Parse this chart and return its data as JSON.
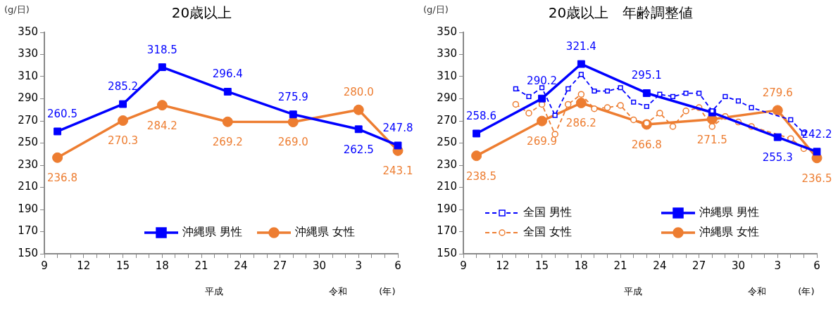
{
  "chart_data": [
    {
      "type": "line",
      "title": "20歳以上",
      "ylabel": "(g/日)",
      "categories": [
        "9",
        null,
        null,
        "12",
        null,
        null,
        "15",
        null,
        null,
        "18",
        null,
        null,
        "21",
        null,
        null,
        "24",
        null,
        null,
        "27",
        null,
        null,
        "30",
        null,
        null,
        "3",
        null,
        null,
        "6"
      ],
      "ylim": [
        150,
        350
      ],
      "yticks": [
        150,
        170,
        190,
        210,
        230,
        250,
        270,
        290,
        310,
        330,
        350
      ],
      "series": [
        {
          "name": "沖縄県 男性",
          "color": "#0000ff",
          "marker": "square",
          "values": [
            null,
            260.5,
            null,
            null,
            null,
            null,
            285.2,
            null,
            null,
            318.5,
            null,
            null,
            null,
            null,
            296.4,
            null,
            null,
            null,
            null,
            275.9,
            null,
            null,
            null,
            null,
            262.5,
            null,
            null,
            247.8
          ],
          "value_labels": [
            null,
            "260.5",
            null,
            null,
            null,
            null,
            "285.2",
            null,
            null,
            "318.5",
            null,
            null,
            null,
            null,
            "296.4",
            null,
            null,
            null,
            null,
            "275.9",
            null,
            null,
            null,
            null,
            "262.5",
            null,
            null,
            "247.8"
          ]
        },
        {
          "name": "沖縄県 女性",
          "color": "#ed7d31",
          "marker": "circle",
          "values": [
            null,
            236.8,
            null,
            null,
            null,
            null,
            270.3,
            null,
            null,
            284.2,
            null,
            null,
            null,
            null,
            269.2,
            null,
            null,
            null,
            null,
            269.0,
            null,
            null,
            null,
            null,
            280.0,
            null,
            null,
            243.1
          ],
          "value_labels": [
            null,
            "236.8",
            null,
            null,
            null,
            null,
            "270.3",
            null,
            null,
            "284.2",
            null,
            null,
            null,
            null,
            "269.2",
            null,
            null,
            null,
            null,
            "269.0",
            null,
            null,
            null,
            null,
            "280.0",
            null,
            null,
            "243.1"
          ]
        }
      ],
      "legend": "bottom right",
      "line_style": "solid",
      "annotations": [
        "平成",
        "令和",
        "(年)"
      ]
    },
    {
      "type": "line",
      "title": "20歳以上　年齢調整値",
      "ylabel": "(g/日)",
      "categories": [
        "9",
        null,
        null,
        "12",
        null,
        null,
        "15",
        null,
        null,
        "18",
        null,
        null,
        "21",
        null,
        null,
        "24",
        null,
        null,
        "27",
        null,
        null,
        "30",
        null,
        null,
        "3",
        null,
        null,
        "6"
      ],
      "ylim": [
        150,
        350
      ],
      "yticks": [
        150,
        170,
        190,
        210,
        230,
        250,
        270,
        290,
        310,
        330,
        350
      ],
      "series": [
        {
          "name": "全国 男性",
          "color": "#0000ff",
          "marker": "square",
          "line_style": "dashed",
          "values": [
            null,
            null,
            null,
            null,
            299,
            292,
            300,
            275,
            299,
            312,
            297,
            297,
            300,
            287,
            283,
            294,
            292,
            295,
            295,
            279,
            292,
            288,
            282,
            null,
            null,
            271,
            259,
            null
          ]
        },
        {
          "name": "沖縄県 男性",
          "color": "#0000ff",
          "marker": "square",
          "line_style": "solid",
          "values": [
            null,
            258.6,
            null,
            null,
            null,
            null,
            290.2,
            null,
            null,
            321.4,
            null,
            null,
            null,
            null,
            295.1,
            null,
            null,
            null,
            null,
            277.6,
            null,
            null,
            null,
            null,
            255.3,
            null,
            null,
            242.2
          ],
          "value_labels": [
            null,
            "258.6",
            null,
            null,
            null,
            null,
            "290.2",
            null,
            null,
            "321.4",
            null,
            null,
            null,
            null,
            "295.1",
            null,
            null,
            null,
            null,
            null,
            null,
            null,
            null,
            null,
            "255.3",
            null,
            null,
            "242.2"
          ]
        },
        {
          "name": "全国 女性",
          "color": "#ed7d31",
          "marker": "circle",
          "line_style": "dashed",
          "values": [
            null,
            null,
            null,
            null,
            285,
            277,
            285,
            258,
            285,
            294,
            281,
            282,
            284,
            271,
            268,
            277,
            265,
            279,
            282,
            265,
            274,
            269,
            265,
            null,
            null,
            254,
            245,
            null
          ]
        },
        {
          "name": "沖縄県 女性",
          "color": "#ed7d31",
          "marker": "circle",
          "line_style": "solid",
          "values": [
            null,
            238.5,
            null,
            null,
            null,
            null,
            269.9,
            null,
            null,
            286.2,
            null,
            null,
            null,
            null,
            266.8,
            null,
            null,
            null,
            null,
            271.5,
            null,
            null,
            null,
            null,
            279.6,
            null,
            null,
            236.5
          ],
          "value_labels": [
            null,
            "238.5",
            null,
            null,
            null,
            null,
            "269.9",
            null,
            null,
            "286.2",
            null,
            null,
            null,
            null,
            "266.8",
            null,
            null,
            null,
            null,
            "271.5",
            null,
            null,
            null,
            null,
            "279.6",
            null,
            null,
            "236.5"
          ]
        }
      ],
      "legend": "bottom",
      "annotations": [
        "平成",
        "令和",
        "(年)"
      ]
    }
  ]
}
